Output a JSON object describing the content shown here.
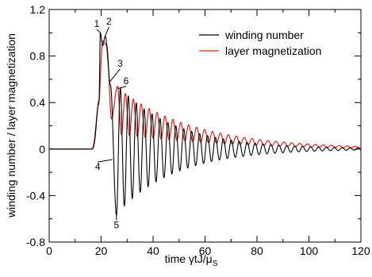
{
  "chart_data": {
    "type": "line",
    "title": "",
    "xlabel": "time  γtJ/μ",
    "xlabel_sub": "S",
    "ylabel": "winding number / layer magnetization",
    "xlim": [
      0,
      120
    ],
    "ylim": [
      -0.8,
      1.2
    ],
    "xticks": [
      0,
      20,
      40,
      60,
      80,
      100,
      120
    ],
    "xtick_labels": [
      "0",
      "20",
      "40",
      "60",
      "80",
      "100",
      "120"
    ],
    "yticks": [
      -0.8,
      -0.4,
      0,
      0.4,
      0.8,
      1.2
    ],
    "ytick_labels": [
      "-0.8",
      "-0.4",
      "0",
      "0.4",
      "0.8",
      "1.2"
    ],
    "grid": false,
    "legend_position": "top-right",
    "colors": {
      "winding": "#000000",
      "layer": "#e0201b",
      "axis": "#000000"
    },
    "series": [
      {
        "name": "winding number",
        "color": "#000000",
        "model": {
          "t_on": 19.2,
          "rise_width": 0.9,
          "plateau_end": 23.0,
          "plateau_peaks": [
            [
              19.7,
              1.0
            ],
            [
              21.6,
              0.97
            ]
          ],
          "plateau_dip": [
            20.6,
            0.89
          ],
          "drop_to": [
            23.6,
            0.55
          ],
          "first_min": [
            25.9,
            -0.57
          ],
          "period": 3.05,
          "phase_peak_t": 29.0,
          "amp_start": 0.56,
          "amp_decay": 0.045,
          "offset_decay": 0.012
        }
      },
      {
        "name": "layer magnetization",
        "color": "#e0201b",
        "model": {
          "t_on": 19.0,
          "rise_width": 0.9,
          "peak": [
            20.6,
            0.93
          ],
          "plateau": [
            22.2,
            0.89
          ],
          "drop_to": [
            24.0,
            0.26
          ],
          "first_peak": [
            26.3,
            0.54
          ],
          "period": 3.05,
          "mean_start": 0.33,
          "mean_decay": 0.032,
          "amp_start": 0.2,
          "amp_decay": 0.038
        }
      }
    ],
    "annotations": [
      {
        "label": "1",
        "t": 19.7,
        "value": 1.0,
        "text_t": 18.3,
        "text_value": 1.05
      },
      {
        "label": "2",
        "t": 21.5,
        "value": 0.97,
        "text_t": 23.0,
        "text_value": 1.07
      },
      {
        "label": "3",
        "t": 23.4,
        "value": 0.58,
        "text_t": 27.3,
        "text_value": 0.71
      },
      {
        "label": "6",
        "t": 26.3,
        "value": 0.52,
        "text_t": 29.6,
        "text_value": 0.56
      },
      {
        "label": "4",
        "t": 24.3,
        "value": -0.09,
        "text_t": 18.7,
        "text_value": -0.18
      },
      {
        "label": "5",
        "t": 25.9,
        "value": -0.57,
        "text_t": 25.9,
        "text_value": -0.68
      }
    ]
  }
}
